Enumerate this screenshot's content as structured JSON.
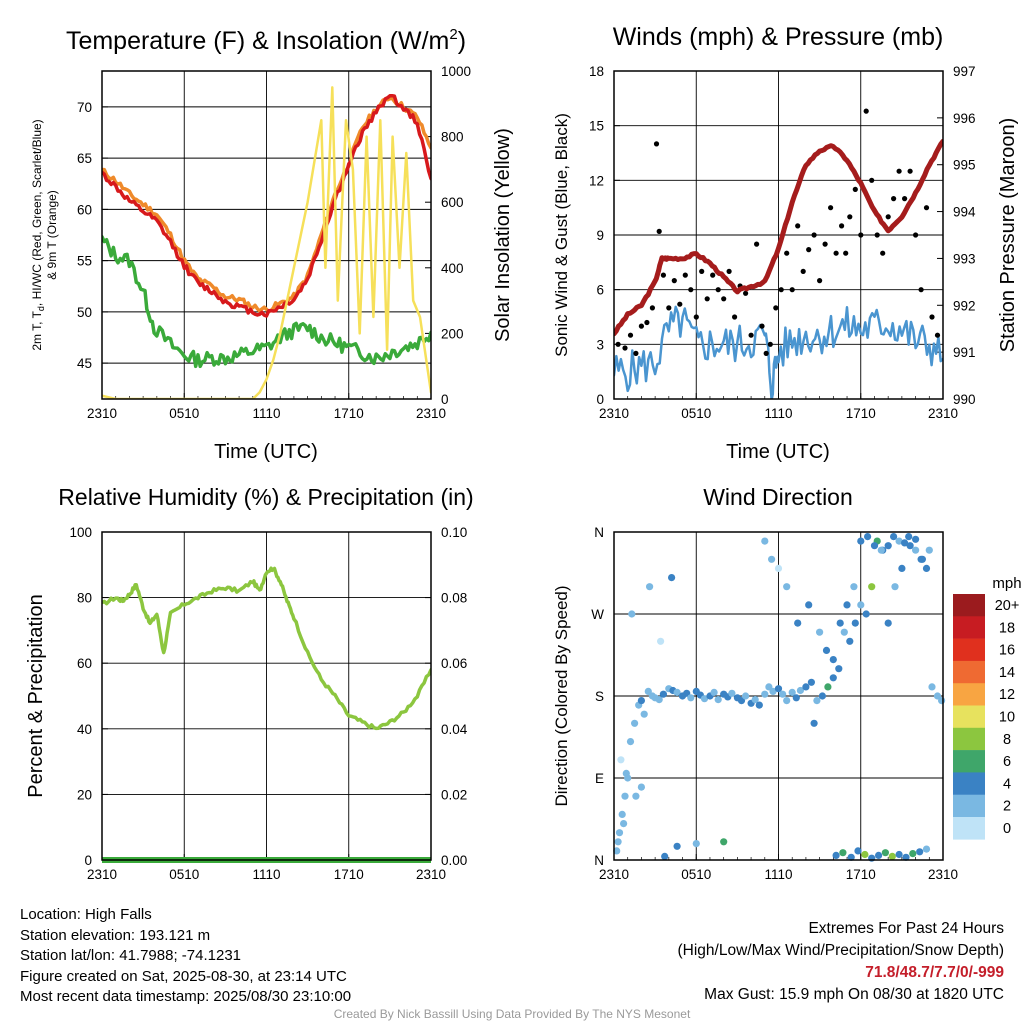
{
  "chart_data": [
    {
      "type": "line",
      "title": "Temperature (F) & Insolation (W/m",
      "title_sup": "2",
      "title_close": ")",
      "xlabel": "Time (UTC)",
      "ylabel_left_line1": "2m T, T",
      "ylabel_left_sub": "d",
      "ylabel_left_line1_rest": ", HI/WC (Red, Green, Scarlet/Blue)",
      "ylabel_left_line2": "& 9m T (Orange)",
      "ylabel_right": "Solar Insolation (Yellow)",
      "x_ticks": [
        "2310",
        "0510",
        "1110",
        "1710",
        "2310"
      ],
      "x_range_hours": [
        0,
        24
      ],
      "ylim_left": [
        41.5,
        73.5
      ],
      "yticks_left": [
        45,
        50,
        55,
        60,
        65,
        70
      ],
      "ylim_right": [
        0,
        1000
      ],
      "yticks_right": [
        0,
        200,
        400,
        600,
        800,
        1000
      ],
      "grid": true,
      "series": [
        {
          "axis": "left",
          "color": "#ef8a2a",
          "width": 3.5,
          "x": [
            0,
            1,
            2,
            3,
            4,
            5,
            6,
            7,
            8,
            9,
            10,
            11,
            12,
            13,
            14,
            15,
            16,
            17,
            18,
            19,
            20,
            21,
            22,
            23,
            24
          ],
          "values": [
            63.8,
            62.8,
            61.5,
            60.5,
            59.5,
            57.5,
            55,
            53.2,
            52.5,
            51.5,
            51.2,
            50.5,
            50.2,
            50.8,
            51.5,
            53.5,
            57.5,
            61.5,
            64.5,
            68.0,
            69.8,
            71.0,
            70.0,
            69.0,
            66.0
          ]
        },
        {
          "axis": "left",
          "color": "#d7191c",
          "width": 3.5,
          "x": [
            0,
            1,
            2,
            3,
            4,
            5,
            6,
            7,
            8,
            9,
            10,
            11,
            12,
            13,
            14,
            15,
            16,
            17,
            18,
            19,
            20,
            21,
            22,
            23,
            24
          ],
          "values": [
            63.5,
            62.2,
            60.8,
            59.8,
            58.8,
            56.8,
            54.5,
            52.8,
            52.0,
            51.0,
            50.5,
            50.0,
            49.8,
            50.5,
            51.2,
            53.2,
            57.0,
            61.0,
            64.2,
            67.5,
            69.5,
            71.3,
            69.8,
            68.5,
            63.0
          ]
        },
        {
          "axis": "left",
          "color": "#3aaa3a",
          "width": 3.5,
          "x": [
            0,
            1,
            2,
            3,
            3.8,
            5,
            6,
            7,
            8,
            9,
            10,
            11,
            12,
            13,
            14,
            15,
            16,
            17,
            18,
            19,
            20,
            21,
            22,
            23,
            24
          ],
          "values": [
            57.0,
            55.5,
            55.0,
            52.0,
            48.5,
            46.8,
            45.8,
            45.3,
            45.5,
            45.5,
            45.8,
            46.2,
            46.5,
            47.5,
            48.2,
            48.5,
            47.5,
            47.0,
            46.5,
            46.0,
            45.5,
            46.0,
            46.5,
            47.0,
            48.0
          ]
        },
        {
          "axis": "right",
          "color": "#f6e05a",
          "width": 2.5,
          "x": [
            0,
            1,
            2,
            3,
            4,
            5,
            6,
            7,
            8,
            9,
            10,
            11,
            11.5,
            12,
            12.5,
            13,
            14,
            15,
            16,
            16.3,
            16.8,
            17.2,
            17.8,
            18.3,
            18.8,
            19.3,
            19.8,
            20.3,
            20.8,
            21.2,
            21.7,
            22.2,
            22.7,
            23.2,
            24
          ],
          "values": [
            10,
            0,
            0,
            0,
            0,
            0,
            0,
            0,
            0,
            0,
            0,
            0,
            20,
            60,
            120,
            200,
            400,
            600,
            850,
            400,
            950,
            300,
            850,
            700,
            200,
            800,
            250,
            850,
            150,
            800,
            400,
            750,
            300,
            250,
            20
          ]
        }
      ]
    },
    {
      "type": "scatter",
      "title": "Winds (mph) & Pressure (mb)",
      "xlabel": "Time (UTC)",
      "ylabel_left": "Sonic Wind & Gust (Blue, Black)",
      "ylabel_right": "Station Pressure (Maroon)",
      "x_ticks": [
        "2310",
        "0510",
        "1110",
        "1710",
        "2310"
      ],
      "x_range_hours": [
        0,
        24
      ],
      "ylim_left": [
        0,
        18
      ],
      "yticks_left": [
        0,
        3,
        6,
        9,
        12,
        15,
        18
      ],
      "ylim_right": [
        990,
        997
      ],
      "yticks_right": [
        990,
        991,
        992,
        993,
        994,
        995,
        996,
        997
      ],
      "grid": true,
      "wind_series": {
        "color": "#4a95d0",
        "x": [
          0,
          1,
          2,
          3,
          4,
          5,
          6,
          7,
          8,
          9,
          10,
          11,
          11.5,
          12,
          13,
          14,
          15,
          16,
          17,
          18,
          19,
          20,
          21,
          22,
          23,
          24
        ],
        "values": [
          1.5,
          1.5,
          1.8,
          2.0,
          3.8,
          4.3,
          3.0,
          3.0,
          3.0,
          3.0,
          3.2,
          3.5,
          0.8,
          2.5,
          3.2,
          3.5,
          3.5,
          3.8,
          4.0,
          3.8,
          4.0,
          4.2,
          3.8,
          3.2,
          3.0,
          2.2
        ]
      },
      "gust_points": {
        "color": "#000000",
        "x": [
          0.3,
          0.8,
          1.2,
          1.6,
          2.0,
          2.4,
          2.8,
          3.1,
          3.3,
          3.6,
          4.0,
          4.4,
          4.8,
          5.2,
          5.6,
          6.0,
          6.4,
          6.8,
          7.2,
          7.6,
          8.0,
          8.4,
          8.8,
          9.2,
          9.6,
          10.0,
          10.4,
          10.8,
          11.1,
          11.4,
          11.8,
          12.2,
          12.6,
          13.0,
          13.4,
          13.8,
          14.2,
          14.6,
          15.0,
          15.4,
          15.8,
          16.2,
          16.6,
          16.9,
          17.2,
          17.6,
          18.0,
          18.4,
          18.8,
          19.2,
          19.6,
          20.0,
          20.4,
          20.8,
          21.2,
          21.6,
          22.0,
          22.4,
          22.8,
          23.2,
          23.6
        ],
        "values": [
          3.0,
          2.8,
          3.5,
          2.5,
          4.0,
          4.2,
          5.0,
          14.0,
          9.2,
          6.8,
          5.0,
          6.5,
          5.2,
          6.8,
          6.0,
          4.5,
          7.0,
          5.5,
          6.8,
          6.0,
          5.5,
          7.0,
          4.5,
          6.2,
          5.8,
          3.5,
          8.5,
          4.0,
          2.5,
          3.0,
          5.0,
          6.0,
          8.0,
          6.0,
          9.5,
          7.0,
          8.2,
          9.0,
          6.5,
          8.5,
          10.5,
          8.0,
          9.5,
          8.0,
          10.0,
          11.5,
          9.0,
          15.8,
          12.0,
          9.0,
          8.0,
          10.0,
          11.0,
          12.5,
          11.0,
          12.5,
          9.0,
          6.0,
          10.5,
          4.5,
          3.5
        ]
      },
      "pressure_series": {
        "color": "#a51c1c",
        "x": [
          0,
          1,
          2,
          3,
          3.5,
          4,
          5,
          6,
          7,
          8,
          9,
          10,
          11,
          12,
          13,
          14,
          15,
          16,
          17,
          18,
          19,
          20,
          21,
          22,
          23,
          24
        ],
        "values": [
          991.4,
          991.8,
          992.0,
          992.5,
          993.0,
          993.0,
          993.0,
          993.1,
          992.9,
          992.6,
          992.3,
          992.4,
          992.5,
          993.2,
          994.2,
          995.0,
          995.3,
          995.4,
          995.1,
          994.6,
          994.0,
          993.6,
          993.9,
          994.4,
          995.0,
          995.5
        ]
      }
    },
    {
      "type": "line",
      "title": "Relative Humidity (%) & Precipitation (in)",
      "ylabel": "Percent & Precipitation",
      "x_ticks": [
        "2310",
        "0510",
        "1110",
        "1710",
        "2310"
      ],
      "x_range_hours": [
        0,
        24
      ],
      "ylim_left": [
        0,
        100
      ],
      "yticks_left": [
        0,
        20,
        40,
        60,
        80,
        100
      ],
      "ylim_right": [
        0,
        0.1
      ],
      "yticks_right": [
        "0.00",
        "0.02",
        "0.04",
        "0.06",
        "0.08",
        "0.10"
      ],
      "grid": true,
      "series": [
        {
          "axis": "left",
          "color": "#8cc63f",
          "width": 3.5,
          "x": [
            0,
            1,
            1.5,
            2,
            2.5,
            3,
            3.5,
            4,
            4.5,
            5,
            6,
            7,
            8,
            9,
            10,
            11,
            11.5,
            12,
            12.5,
            13,
            13.5,
            14,
            15,
            16,
            17,
            18,
            19,
            20,
            21,
            22,
            23,
            24
          ],
          "values": [
            78,
            80,
            79,
            81,
            84,
            77,
            72,
            75,
            63,
            75,
            78,
            80,
            82,
            83,
            82,
            85,
            82,
            88,
            89,
            85,
            79,
            74,
            63,
            55,
            50,
            44,
            42,
            40,
            42,
            45,
            50,
            58
          ]
        },
        {
          "axis": "right",
          "color": "#3aaa3a",
          "width": 6,
          "x": [
            0,
            24
          ],
          "values": [
            0.0,
            0.0
          ]
        }
      ]
    },
    {
      "type": "scatter",
      "title": "Wind Direction",
      "ylabel": "Direction (Colored By Speed)",
      "x_ticks": [
        "2310",
        "0510",
        "1110",
        "1710",
        "2310"
      ],
      "x_range_hours": [
        0,
        24
      ],
      "y_ticks": [
        "N",
        "E",
        "S",
        "W",
        "N"
      ],
      "ylim": [
        0,
        360
      ],
      "grid": true,
      "x": [
        0.2,
        0.4,
        0.6,
        0.8,
        1.0,
        0.5,
        0.3,
        0.7,
        1.2,
        1.5,
        1.8,
        2.0,
        2.2,
        2.5,
        2.8,
        3.0,
        3.3,
        3.6,
        4.0,
        4.3,
        4.6,
        5.0,
        5.3,
        5.6,
        6.0,
        6.3,
        6.6,
        7.0,
        7.3,
        7.6,
        8.0,
        8.3,
        8.6,
        9.0,
        9.3,
        9.6,
        10.0,
        10.3,
        10.6,
        11.0,
        11.3,
        11.6,
        12.0,
        12.3,
        12.6,
        13.0,
        13.3,
        13.6,
        14.0,
        14.4,
        14.8,
        15.2,
        15.6,
        16.0,
        16.4,
        16.8,
        17.2,
        17.6,
        18.0,
        18.4,
        18.8,
        19.2,
        19.6,
        20.0,
        20.4,
        20.8,
        21.2,
        21.6,
        22.0,
        22.4,
        22.8,
        23.2,
        23.6,
        23.9,
        1.3,
        2.6,
        3.4,
        4.2,
        11.0,
        11.5,
        12.0,
        12.6,
        13.4,
        14.2,
        15.0,
        15.5,
        16.0,
        16.5,
        17.0,
        17.5,
        18.0,
        18.5,
        19.0,
        19.5,
        20.0,
        20.5,
        21.0,
        21.5,
        22.0,
        22.5,
        23.0,
        16.2,
        16.7,
        17.3,
        17.8,
        18.3,
        18.8,
        19.3,
        19.8,
        20.3,
        20.8,
        21.3,
        21.8,
        22.3,
        22.8,
        3.7,
        14.6,
        4.6,
        6.0,
        8.0,
        2.0,
        1.6,
        0.9
      ],
      "directions": [
        10,
        30,
        50,
        70,
        90,
        110,
        20,
        40,
        130,
        150,
        170,
        175,
        160,
        185,
        180,
        178,
        176,
        182,
        188,
        186,
        184,
        180,
        183,
        178,
        185,
        181,
        177,
        180,
        184,
        176,
        182,
        179,
        183,
        178,
        175,
        180,
        172,
        176,
        170,
        182,
        190,
        185,
        188,
        182,
        175,
        184,
        178,
        186,
        190,
        195,
        175,
        180,
        190,
        200,
        210,
        250,
        240,
        260,
        280,
        270,
        300,
        350,
        340,
        345,
        355,
        350,
        348,
        345,
        352,
        330,
        320,
        190,
        180,
        175,
        270,
        300,
        240,
        310,
        350,
        330,
        320,
        300,
        260,
        280,
        250,
        230,
        220,
        260,
        280,
        300,
        350,
        355,
        345,
        340,
        260,
        300,
        320,
        355,
        340,
        330,
        340,
        5,
        8,
        3,
        10,
        6,
        2,
        5,
        8,
        4,
        6,
        3,
        7,
        9,
        12,
        4,
        150,
        15,
        18,
        20,
        80,
        70,
        95
      ],
      "speeds": [
        1,
        2,
        1,
        2,
        1,
        0,
        1,
        2,
        1,
        2,
        1,
        3,
        1,
        2,
        2,
        1,
        2,
        3,
        1,
        3,
        2,
        3,
        4,
        2,
        3,
        4,
        2,
        3,
        2,
        1,
        3,
        4,
        2,
        3,
        3,
        2,
        4,
        2,
        3,
        1,
        1,
        2,
        3,
        2,
        1,
        2,
        3,
        2,
        3,
        4,
        2,
        4,
        5,
        3,
        4,
        2,
        3,
        4,
        2,
        3,
        7,
        5,
        3,
        4,
        3,
        2,
        3,
        3,
        4,
        3,
        4,
        2,
        1,
        1,
        1,
        2,
        0,
        3,
        1,
        2,
        0,
        2,
        3,
        4,
        2,
        3,
        4,
        4,
        3,
        2,
        3,
        4,
        4,
        2,
        3,
        2,
        3,
        4,
        2,
        3,
        1,
        4,
        5,
        4,
        3,
        7,
        4,
        3,
        5,
        7,
        4,
        3,
        5,
        4,
        2,
        3,
        4,
        3,
        2,
        6,
        2,
        2,
        1
      ],
      "colorbar": {
        "label": "mph",
        "levels": [
          "20+",
          "18",
          "16",
          "14",
          "12",
          "10",
          "8",
          "6",
          "4",
          "2",
          "0"
        ],
        "colors": [
          "#9b1b1e",
          "#c71c22",
          "#e0301e",
          "#ef6a32",
          "#f8a542",
          "#e7e25e",
          "#8cc63f",
          "#3fa66a",
          "#3a82c4",
          "#7ab8e2",
          "#bfe3f7"
        ]
      }
    }
  ],
  "footer": {
    "location": "Location: High Falls",
    "elevation": "Station elevation: 193.121 m",
    "latlon": "Station lat/lon: 41.7988; -74.1231",
    "created": "Figure created on Sat, 2025-08-30, at 23:14 UTC",
    "recent": "Most recent data timestamp: 2025/08/30 23:10:00",
    "extremes_title": "Extremes For Past 24 Hours",
    "extremes_subtitle": "(High/Low/Max Wind/Precipitation/Snow Depth)",
    "extremes_values": "71.8/48.7/7.7/0/-999",
    "max_gust": "Max Gust: 15.9 mph On 08/30 at 1820 UTC",
    "credit": "Created By Nick Bassill Using Data Provided By The NYS Mesonet"
  }
}
